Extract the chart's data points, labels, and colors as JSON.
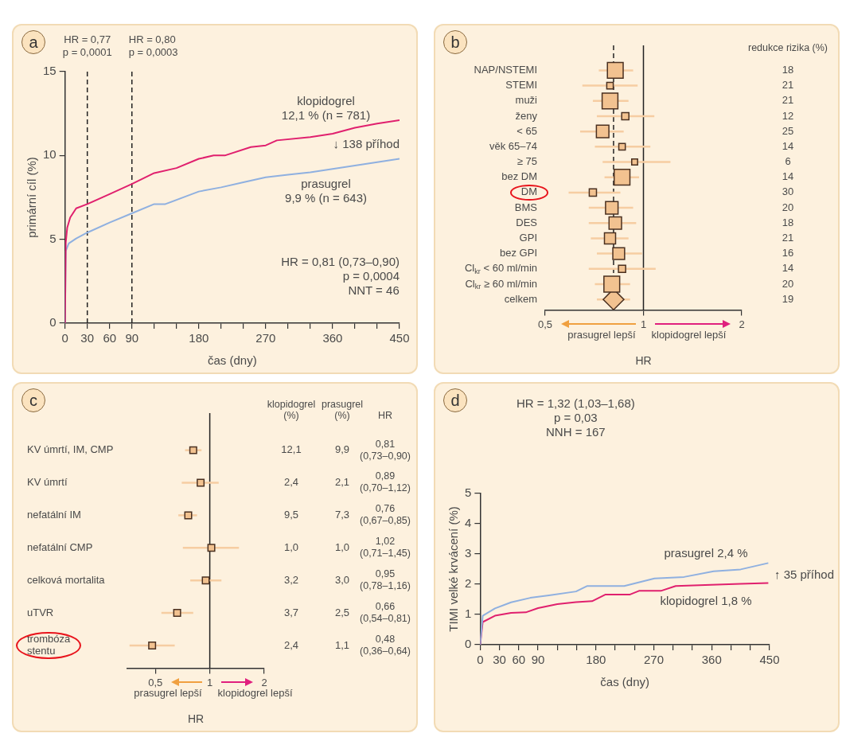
{
  "chart_data": [
    {
      "type": "line",
      "title": "a",
      "xlabel": "čas (dny)",
      "ylabel": "primární cíl (%)",
      "xlim": [
        0,
        450
      ],
      "xticks": [
        0,
        30,
        60,
        90,
        {
          "value": 120,
          "label": null
        },
        {
          "value": 150,
          "label": null
        },
        180,
        {
          "value": 210,
          "label": null
        },
        {
          "value": 240,
          "label": null
        },
        270,
        {
          "value": 300,
          "label": null
        },
        {
          "value": 330,
          "label": null
        },
        360,
        {
          "value": 390,
          "label": null
        },
        {
          "value": 420,
          "label": null
        },
        450
      ],
      "ylim": [
        0,
        15
      ],
      "yticks": [
        0,
        5,
        10,
        15
      ],
      "marker": "none",
      "series": [
        {
          "name": "klopidogrel\n12,1 % (n = 781)",
          "color": "#e0206e",
          "x": [
            0,
            1,
            3,
            7,
            15,
            30,
            60,
            90,
            120,
            150,
            180,
            200,
            215,
            250,
            270,
            285,
            330,
            360,
            390,
            420,
            450
          ],
          "values": [
            0,
            4.8,
            5.7,
            6.3,
            6.85,
            7.1,
            7.7,
            8.3,
            8.95,
            9.25,
            9.8,
            10.0,
            10.0,
            10.5,
            10.6,
            10.9,
            11.1,
            11.3,
            11.65,
            11.9,
            12.1
          ]
        },
        {
          "name": "prasugrel\n9,9 % (n = 643)",
          "color": "#8fb0e0",
          "x": [
            0,
            1,
            5,
            15,
            30,
            60,
            90,
            120,
            135,
            165,
            180,
            210,
            240,
            270,
            300,
            330,
            360,
            390,
            420,
            450
          ],
          "values": [
            0,
            4.3,
            4.75,
            5.05,
            5.4,
            6.0,
            6.55,
            7.1,
            7.1,
            7.6,
            7.85,
            8.1,
            8.4,
            8.7,
            8.85,
            9.0,
            9.2,
            9.4,
            9.6,
            9.8
          ]
        }
      ],
      "ref_lines": [
        {
          "axis": "x",
          "value": 30,
          "line_style": "dashed"
        },
        {
          "axis": "x",
          "value": 90,
          "line_style": "dashed"
        }
      ],
      "annotations": [
        "HR = 0,77\np = 0,0001",
        "HR = 0,80\np = 0,0003",
        "↓ 138 příhod",
        "HR = 0,81 (0,73–0,90)\np = 0,0004\nNNT = 46"
      ]
    },
    {
      "type": "scatter",
      "title": "b",
      "orientation": "horizontal",
      "log": "x",
      "xlabel": "HR",
      "xlim": [
        0.5,
        2
      ],
      "xticks": [
        {
          "value": 0.5,
          "label": "0,5"
        },
        1,
        2
      ],
      "categories": [
        "NAP/NSTEMI",
        "STEMI",
        "muži",
        "ženy",
        "< 65",
        "věk 65–74",
        "≥ 75",
        "bez DM",
        "DM",
        "BMS",
        "DES",
        "GPI",
        "bez GPI",
        "Cl$_{kr}$ < 60 ml/min",
        "Cl$_{kr}$ ≥ 60 ml/min",
        "celkem"
      ],
      "series": [
        {
          "type": "bubble",
          "marker": "square",
          "color": "#f2c290",
          "values": [
            0.82,
            0.79,
            0.79,
            0.88,
            0.75,
            0.86,
            0.94,
            0.86,
            0.7,
            0.8,
            0.82,
            0.79,
            0.84,
            0.86,
            0.8,
            null
          ],
          "sizes": [
            1,
            0.17,
            1,
            0.21,
            0.63,
            0.17,
            0.14,
            1,
            0.21,
            0.63,
            0.63,
            0.5,
            0.56,
            0.21,
            1,
            null
          ],
          "errors": [
            [
              0.73,
              0.93
            ],
            [
              0.65,
              0.96
            ],
            [
              0.7,
              0.9
            ],
            [
              0.72,
              1.08
            ],
            [
              0.64,
              0.87
            ],
            [
              0.71,
              1.05
            ],
            [
              0.75,
              1.21
            ],
            [
              0.76,
              0.97
            ],
            [
              0.59,
              0.85
            ],
            [
              0.68,
              0.93
            ],
            [
              0.68,
              0.95
            ],
            [
              0.69,
              0.9
            ],
            [
              0.72,
              0.99
            ],
            [
              0.68,
              1.09
            ],
            [
              0.71,
              0.91
            ],
            null
          ]
        },
        {
          "type": "scatter",
          "marker": "diamond",
          "color": "#f2c290",
          "values": [
            null,
            null,
            null,
            null,
            null,
            null,
            null,
            null,
            null,
            null,
            null,
            null,
            null,
            null,
            null,
            0.81
          ],
          "errors": [
            null,
            null,
            null,
            null,
            null,
            null,
            null,
            null,
            null,
            null,
            null,
            null,
            null,
            null,
            null,
            [
              0.72,
              0.91
            ]
          ]
        }
      ],
      "ref_lines": [
        {
          "axis": "x",
          "value": 0.81,
          "line_style": "dashed"
        },
        {
          "axis": "x",
          "value": 1
        }
      ],
      "annotations": [
        "redukce rizika (%)",
        "18",
        "21",
        "21",
        "12",
        "25",
        "14",
        "6",
        "14",
        "30",
        "20",
        "18",
        "21",
        "16",
        "14",
        "20",
        "19",
        "prasugrel lepší",
        "klopidogrel lepší"
      ]
    },
    {
      "type": "scatter",
      "title": "c",
      "orientation": "horizontal",
      "log": "x",
      "xlabel": "HR",
      "xlim": [
        0.35,
        2
      ],
      "xticks": [
        {
          "value": 0.5,
          "label": "0,5"
        },
        1,
        2
      ],
      "marker": "square",
      "color": "#f2c290",
      "categories": [
        "KV úmrtí, IM, CMP",
        "KV úmrtí",
        "nefatální IM",
        "nefatální CMP",
        "celková mortalita",
        "uTVR",
        "trombóza\nstentu"
      ],
      "values": [
        0.81,
        0.89,
        0.76,
        1.02,
        0.95,
        0.66,
        0.48
      ],
      "errors": [
        [
          0.73,
          0.9
        ],
        [
          0.7,
          1.12
        ],
        [
          0.67,
          0.85
        ],
        [
          0.71,
          1.45
        ],
        [
          0.78,
          1.16
        ],
        [
          0.54,
          0.81
        ],
        [
          0.36,
          0.64
        ]
      ],
      "value_labels": [
        "0,81\n(0,73–0,90)",
        "0,89\n(0,70–1,12)",
        "0,76\n(0,67–0,85)",
        "1,02\n(0,71–1,45)",
        "0,95\n(0,78–1,16)",
        "0,66\n(0,54–0,81)",
        "0,48\n(0,36–0,64)"
      ],
      "ref_lines": [
        {
          "axis": "x",
          "value": 1
        }
      ],
      "annotations": [
        "klopidogrel\n(%)",
        "prasugrel\n(%)",
        "HR",
        "12,1",
        "9,9",
        "2,4",
        "2,1",
        "9,5",
        "7,3",
        "1,0",
        "1,0",
        "3,2",
        "3,0",
        "3,7",
        "2,5",
        "2,4",
        "1,1",
        "prasugrel lepší",
        "klopidogrel lepší"
      ]
    },
    {
      "type": "line",
      "title": "d",
      "xlabel": "čas (dny)",
      "ylabel": "TIMI velké krvácení (%)",
      "xlim": [
        0,
        450
      ],
      "xticks": [
        0,
        30,
        60,
        90,
        {
          "value": 120,
          "label": null
        },
        {
          "value": 150,
          "label": null
        },
        180,
        {
          "value": 210,
          "label": null
        },
        {
          "value": 240,
          "label": null
        },
        270,
        {
          "value": 300,
          "label": null
        },
        {
          "value": 330,
          "label": null
        },
        360,
        {
          "value": 390,
          "label": null
        },
        {
          "value": 420,
          "label": null
        },
        450
      ],
      "ylim": [
        0,
        5
      ],
      "yticks": [
        0,
        1,
        2,
        3,
        4,
        5
      ],
      "marker": "none",
      "series": [
        {
          "name": "prasugrel 2,4 %",
          "color": "#8fb0e0",
          "x": [
            0,
            4,
            23,
            48,
            78,
            107,
            149,
            166,
            224,
            271,
            317,
            363,
            405,
            448
          ],
          "values": [
            0,
            0.96,
            1.2,
            1.4,
            1.55,
            1.63,
            1.76,
            1.94,
            1.94,
            2.19,
            2.24,
            2.43,
            2.49,
            2.7
          ]
        },
        {
          "name": "klopidogrel 1,8 %",
          "color": "#e0206e",
          "x": [
            0,
            4,
            23,
            48,
            71,
            90,
            120,
            149,
            174,
            195,
            233,
            247,
            281,
            304,
            405,
            448
          ],
          "values": [
            0,
            0.75,
            0.96,
            1.05,
            1.07,
            1.21,
            1.34,
            1.41,
            1.44,
            1.66,
            1.66,
            1.78,
            1.78,
            1.94,
            2.01,
            2.04
          ]
        }
      ],
      "annotations": [
        "HR = 1,32 (1,03–1,68)\np = 0,03\nNNH = 167",
        "↑ 35 příhod"
      ]
    }
  ]
}
